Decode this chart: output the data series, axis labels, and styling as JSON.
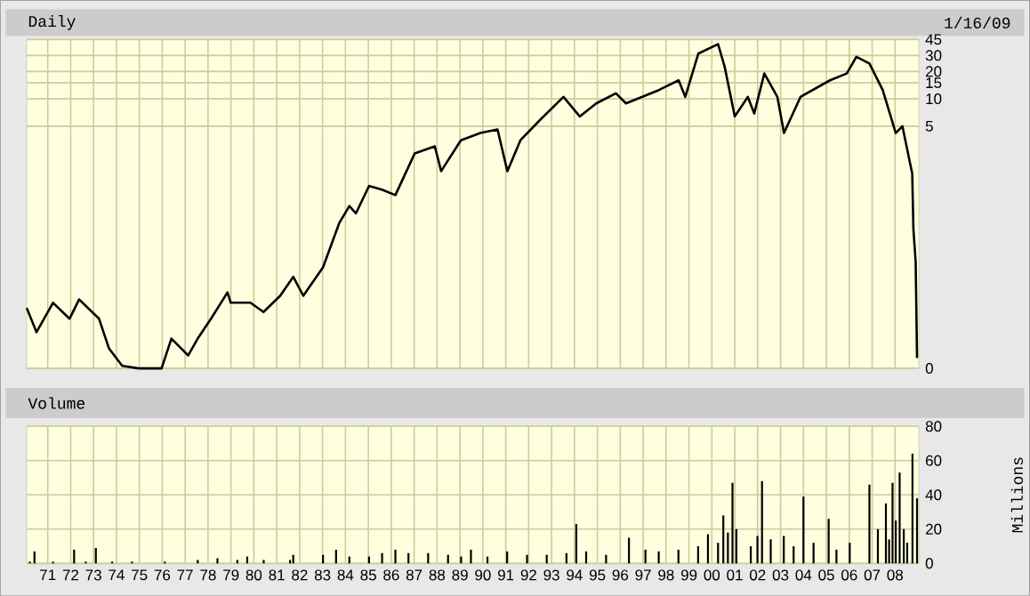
{
  "chart_data": [
    {
      "type": "line",
      "title": "Daily",
      "subtitle": "1/16/09",
      "color": "#000000",
      "log": true,
      "grid": true,
      "tick_labels": "y",
      "x": [
        1970.08,
        1970.51,
        1971.23,
        1971.95,
        1972.37,
        1973.24,
        1973.67,
        1974.25,
        1974.97,
        1975.54,
        1975.97,
        1976.4,
        1977.13,
        1977.55,
        1978.13,
        1978.85,
        1978.99,
        1979.85,
        1980.42,
        1981.15,
        1981.72,
        1982.16,
        1983.02,
        1983.73,
        1984.17,
        1984.46,
        1985.03,
        1985.6,
        1986.18,
        1987.02,
        1987.9,
        1988.18,
        1989.04,
        1989.89,
        1990.64,
        1991.07,
        1991.64,
        1992.51,
        1993.52,
        1994.23,
        1994.95,
        1995.81,
        1996.25,
        1997.69,
        1998.55,
        1998.84,
        1999.41,
        2000.27,
        2000.56,
        2001.0,
        2001.57,
        2001.85,
        2002.29,
        2002.86,
        2003.15,
        2003.87,
        2005.16,
        2005.89,
        2006.31,
        2006.88,
        2007.46,
        2008.03,
        2008.32,
        2008.75,
        2008.8,
        2008.9,
        2008.96
      ],
      "values": [
        0.05,
        0.027,
        0.057,
        0.038,
        0.062,
        0.038,
        0.018,
        0.0115,
        0.0108,
        0.0108,
        0.0108,
        0.023,
        0.015,
        0.023,
        0.038,
        0.074,
        0.057,
        0.057,
        0.045,
        0.068,
        0.11,
        0.068,
        0.14,
        0.43,
        0.66,
        0.55,
        1.1,
        1.0,
        0.87,
        2.5,
        3.0,
        1.6,
        3.5,
        4.2,
        4.6,
        1.6,
        3.5,
        5.9,
        10.5,
        6.4,
        8.9,
        11.5,
        8.9,
        12.5,
        16,
        10.5,
        31.5,
        40,
        22.5,
        6.4,
        10.5,
        6.9,
        19,
        10.5,
        4.2,
        10.5,
        16,
        19,
        29,
        24.5,
        12.5,
        4.2,
        5.0,
        1.5,
        0.37,
        0.16,
        0.014
      ],
      "xlim": [
        1970.08,
        2009.04
      ],
      "ylim": [
        0.0108,
        45
      ],
      "xticks": [
        1971,
        1972,
        1973,
        1974,
        1975,
        1976,
        1977,
        1978,
        1979,
        1980,
        1981,
        1982,
        1983,
        1984,
        1985,
        1986,
        1987,
        1988,
        1989,
        1990,
        1991,
        1992,
        1993,
        1994,
        1995,
        1996,
        1997,
        1998,
        1999,
        2000,
        2001,
        2002,
        2003,
        2004,
        2005,
        2006,
        2007,
        2008
      ],
      "yticks": [
        {
          "value": 0.0108,
          "label": "0"
        },
        5,
        10,
        15,
        20,
        30,
        45
      ]
    },
    {
      "type": "bar",
      "title": "Volume",
      "ylabel": "Millions",
      "color": "#000000",
      "grid": true,
      "x": [
        1970.22,
        1970.42,
        1971.23,
        1972.15,
        1972.66,
        1973.1,
        1973.81,
        1974.68,
        1976.11,
        1977.55,
        1978.41,
        1979.28,
        1979.71,
        1980.43,
        1981.58,
        1981.72,
        1983.02,
        1983.59,
        1984.17,
        1985.03,
        1985.6,
        1986.18,
        1986.75,
        1987.61,
        1988.48,
        1989.05,
        1989.48,
        1990.2,
        1991.06,
        1991.93,
        1992.79,
        1993.65,
        1994.08,
        1994.51,
        1995.38,
        1996.38,
        1997.1,
        1997.68,
        1998.54,
        1999.4,
        1999.83,
        2000.27,
        2000.5,
        2000.7,
        2000.9,
        2001.07,
        2001.7,
        2001.99,
        2002.19,
        2002.57,
        2003.14,
        2003.57,
        2004.0,
        2004.44,
        2005.1,
        2005.44,
        2006.02,
        2006.88,
        2007.25,
        2007.6,
        2007.74,
        2007.89,
        2008.03,
        2008.2,
        2008.38,
        2008.53,
        2008.76,
        2008.96
      ],
      "values": [
        1,
        7,
        1,
        8,
        1,
        9,
        1,
        1,
        1,
        2,
        3,
        2,
        4,
        2,
        2,
        5,
        5,
        8,
        4,
        4,
        6,
        8,
        6,
        6,
        5,
        4,
        8,
        4,
        7,
        5,
        5,
        6,
        23,
        7,
        5,
        15,
        8,
        7,
        8,
        10,
        17,
        12,
        28,
        18,
        47,
        20,
        10,
        16,
        48,
        14,
        16,
        10,
        39,
        12,
        26,
        8,
        12,
        46,
        20,
        35,
        14,
        47,
        25,
        53,
        20,
        12,
        64,
        38
      ],
      "xlim": [
        1970.08,
        2009.04
      ],
      "ylim": [
        0,
        80
      ],
      "yticks": [
        0,
        20,
        40,
        60,
        80
      ],
      "xticks": [
        {
          "value": 1971,
          "label": "71"
        },
        {
          "value": 1972,
          "label": "72"
        },
        {
          "value": 1973,
          "label": "73"
        },
        {
          "value": 1974,
          "label": "74"
        },
        {
          "value": 1975,
          "label": "75"
        },
        {
          "value": 1976,
          "label": "76"
        },
        {
          "value": 1977,
          "label": "77"
        },
        {
          "value": 1978,
          "label": "78"
        },
        {
          "value": 1979,
          "label": "79"
        },
        {
          "value": 1980,
          "label": "80"
        },
        {
          "value": 1981,
          "label": "81"
        },
        {
          "value": 1982,
          "label": "82"
        },
        {
          "value": 1983,
          "label": "83"
        },
        {
          "value": 1984,
          "label": "84"
        },
        {
          "value": 1985,
          "label": "85"
        },
        {
          "value": 1986,
          "label": "86"
        },
        {
          "value": 1987,
          "label": "87"
        },
        {
          "value": 1988,
          "label": "88"
        },
        {
          "value": 1989,
          "label": "89"
        },
        {
          "value": 1990,
          "label": "90"
        },
        {
          "value": 1991,
          "label": "91"
        },
        {
          "value": 1992,
          "label": "92"
        },
        {
          "value": 1993,
          "label": "93"
        },
        {
          "value": 1994,
          "label": "94"
        },
        {
          "value": 1995,
          "label": "95"
        },
        {
          "value": 1996,
          "label": "96"
        },
        {
          "value": 1997,
          "label": "97"
        },
        {
          "value": 1998,
          "label": "98"
        },
        {
          "value": 1999,
          "label": "99"
        },
        {
          "value": 2000,
          "label": "00"
        },
        {
          "value": 2001,
          "label": "01"
        },
        {
          "value": 2002,
          "label": "02"
        },
        {
          "value": 2003,
          "label": "03"
        },
        {
          "value": 2004,
          "label": "04"
        },
        {
          "value": 2005,
          "label": "05"
        },
        {
          "value": 2006,
          "label": "06"
        },
        {
          "value": 2007,
          "label": "07"
        },
        {
          "value": 2008,
          "label": "08"
        }
      ]
    }
  ]
}
